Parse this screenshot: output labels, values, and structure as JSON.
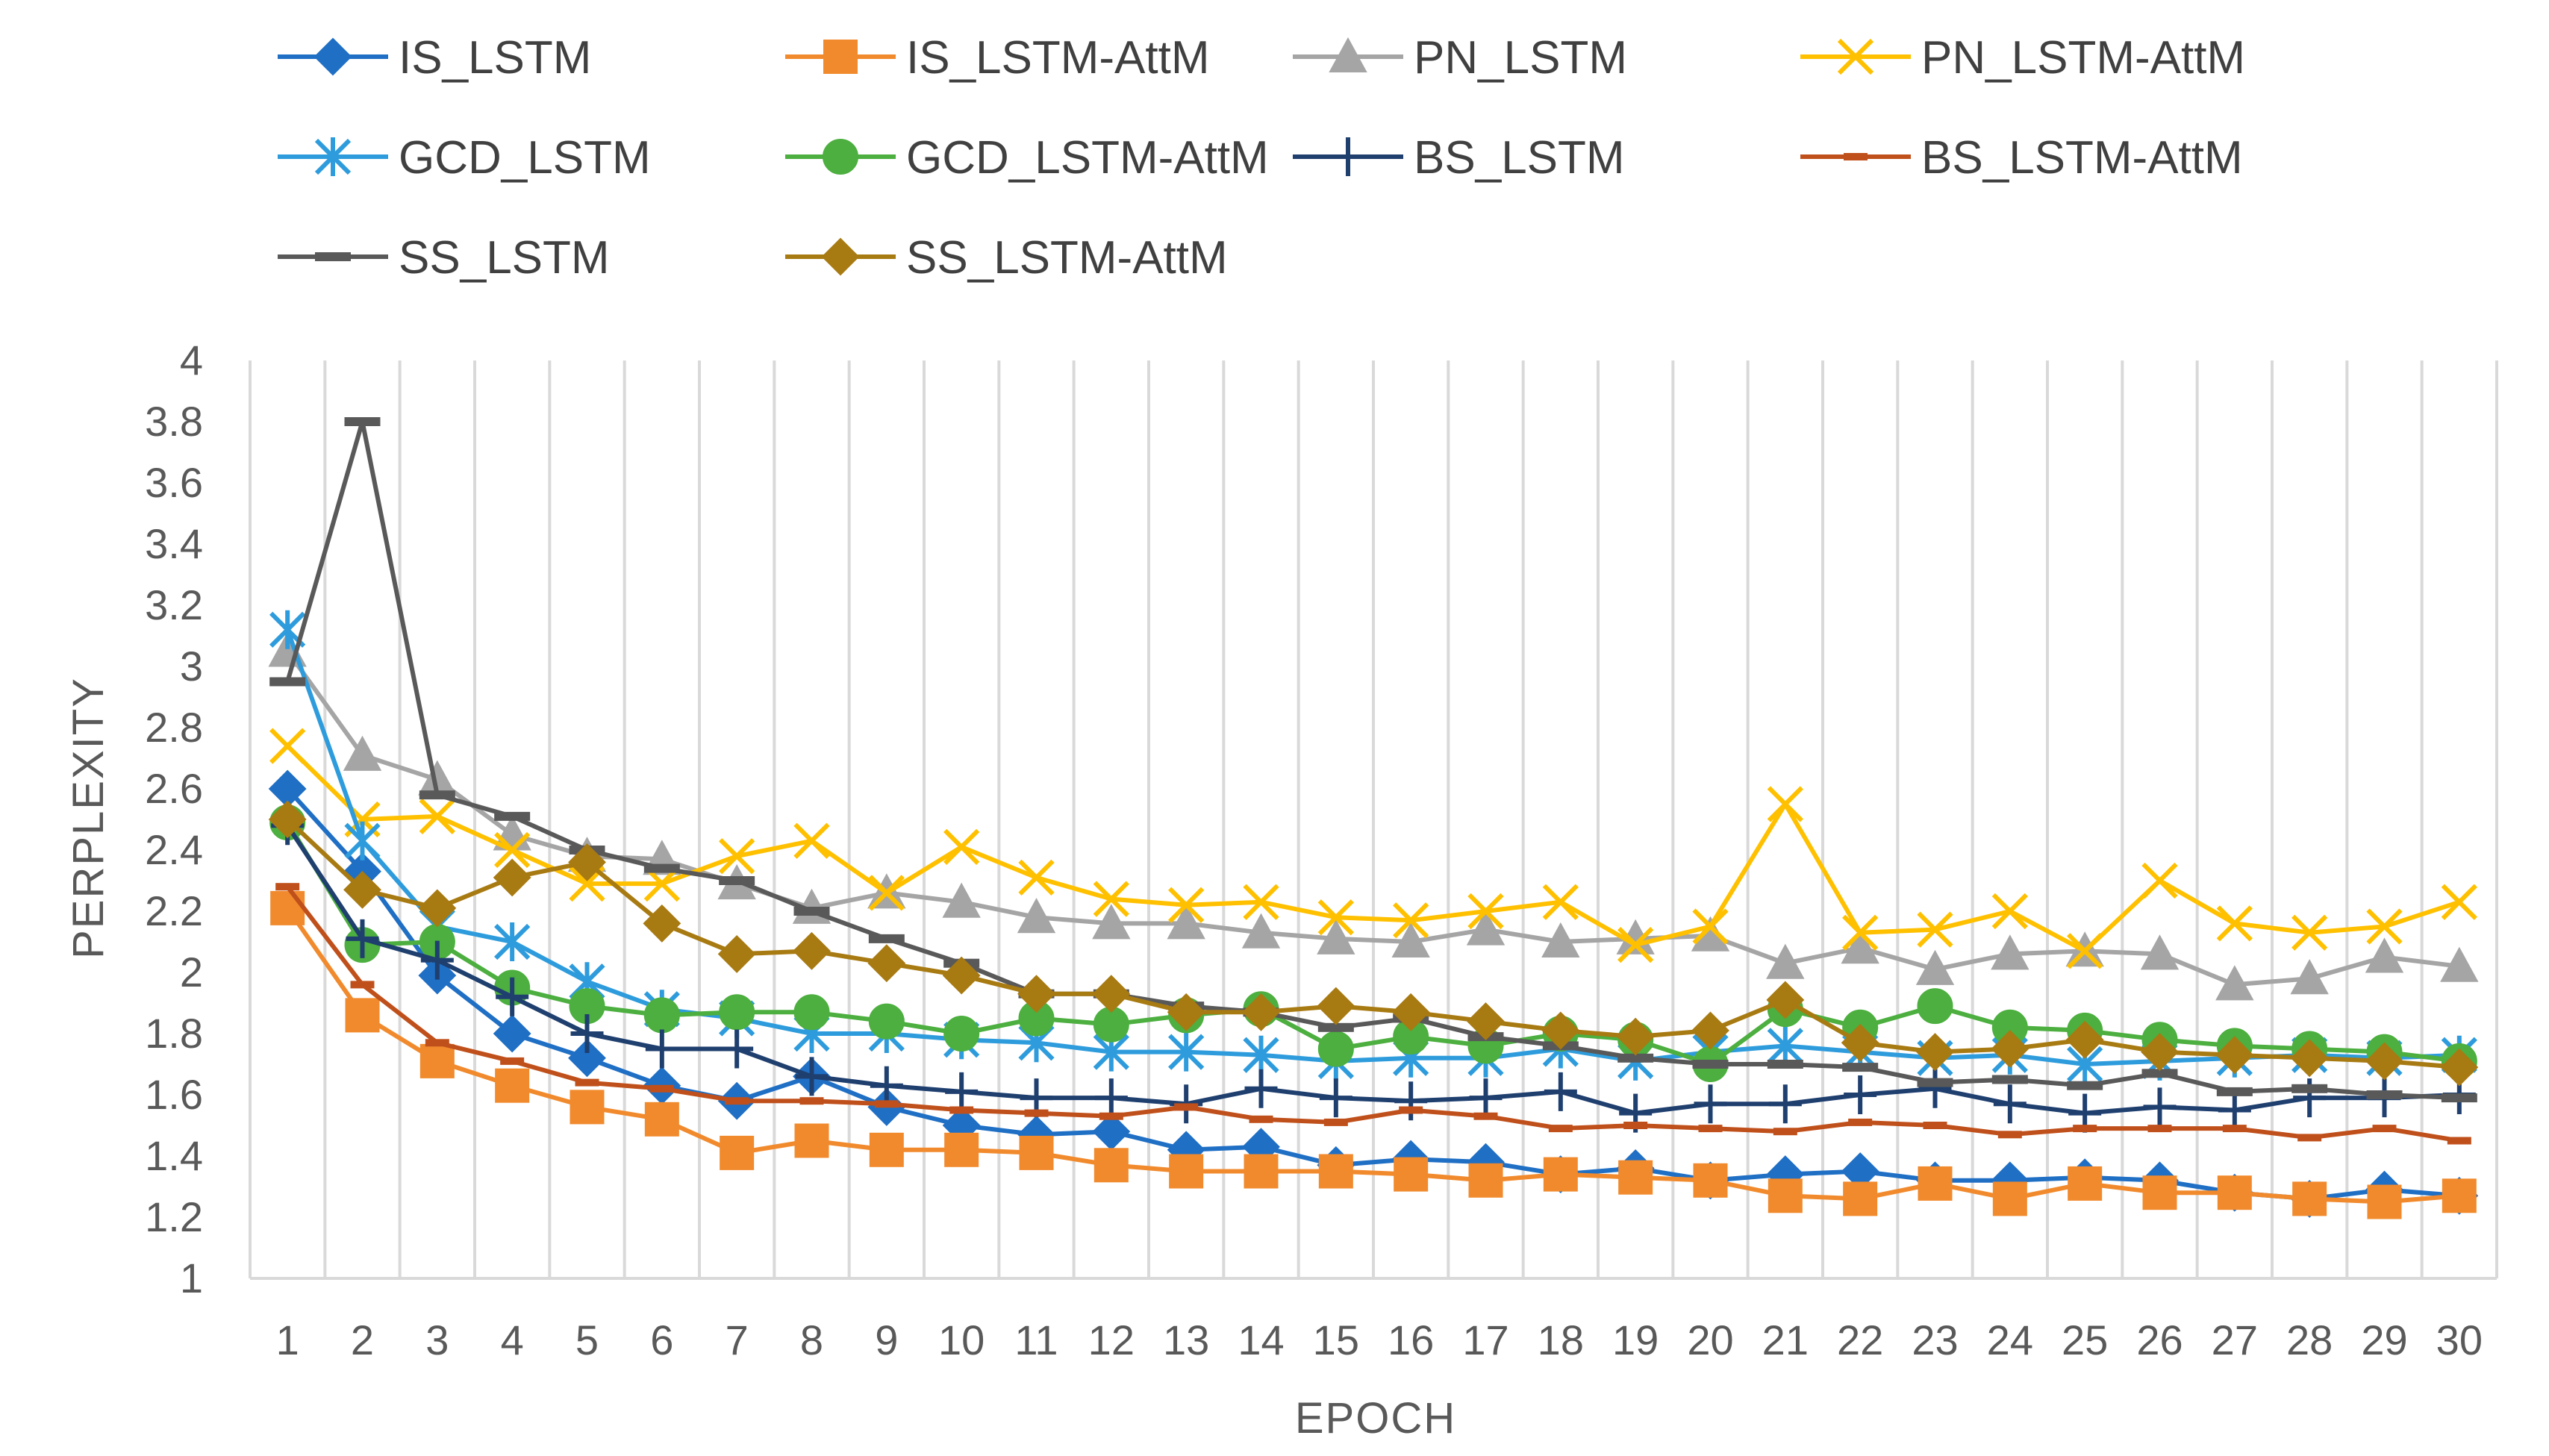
{
  "chart_data": {
    "type": "line",
    "xlabel": "EPOCH",
    "ylabel": "PERPLEXITY",
    "ylim": [
      1,
      4
    ],
    "yticks": [
      "1",
      "1.2",
      "1.4",
      "1.6",
      "1.8",
      "2",
      "2.2",
      "2.4",
      "2.6",
      "2.8",
      "3",
      "3.2",
      "3.4",
      "3.6",
      "3.8",
      "4"
    ],
    "categories": [
      "1",
      "2",
      "3",
      "4",
      "5",
      "6",
      "7",
      "8",
      "9",
      "10",
      "11",
      "12",
      "13",
      "14",
      "15",
      "16",
      "17",
      "18",
      "19",
      "20",
      "21",
      "22",
      "23",
      "24",
      "25",
      "26",
      "27",
      "28",
      "29",
      "30"
    ],
    "grid": "vertical",
    "legend_position": "top",
    "series": [
      {
        "name": "IS_LSTM",
        "color": "#1F6FC5",
        "marker": "diamond",
        "values": [
          2.6,
          2.33,
          1.99,
          1.8,
          1.72,
          1.63,
          1.58,
          1.66,
          1.56,
          1.5,
          1.47,
          1.48,
          1.42,
          1.43,
          1.37,
          1.39,
          1.38,
          1.34,
          1.36,
          1.32,
          1.34,
          1.35,
          1.32,
          1.32,
          1.33,
          1.32,
          1.28,
          1.26,
          1.29,
          1.27
        ]
      },
      {
        "name": "IS_LSTM-AttM",
        "color": "#F18A2D",
        "marker": "square",
        "values": [
          2.21,
          1.86,
          1.71,
          1.63,
          1.56,
          1.52,
          1.41,
          1.45,
          1.42,
          1.42,
          1.41,
          1.37,
          1.35,
          1.35,
          1.35,
          1.34,
          1.32,
          1.34,
          1.33,
          1.32,
          1.27,
          1.26,
          1.31,
          1.26,
          1.31,
          1.28,
          1.28,
          1.26,
          1.25,
          1.27
        ]
      },
      {
        "name": "PN_LSTM",
        "color": "#A5A5A5",
        "marker": "triangle",
        "values": [
          3.05,
          2.71,
          2.63,
          2.45,
          2.38,
          2.37,
          2.29,
          2.21,
          2.26,
          2.23,
          2.18,
          2.16,
          2.16,
          2.13,
          2.11,
          2.1,
          2.14,
          2.1,
          2.11,
          2.12,
          2.03,
          2.08,
          2.01,
          2.06,
          2.07,
          2.06,
          1.96,
          1.98,
          2.05,
          2.02
        ]
      },
      {
        "name": "PN_LSTM-AttM",
        "color": "#FFC000",
        "marker": "x",
        "values": [
          2.74,
          2.5,
          2.51,
          2.4,
          2.29,
          2.29,
          2.38,
          2.43,
          2.26,
          2.41,
          2.31,
          2.24,
          2.22,
          2.23,
          2.18,
          2.17,
          2.2,
          2.23,
          2.09,
          2.15,
          2.55,
          2.13,
          2.14,
          2.2,
          2.07,
          2.3,
          2.16,
          2.13,
          2.15,
          2.23
        ]
      },
      {
        "name": "GCD_LSTM",
        "color": "#2E9CDC",
        "marker": "asterisk",
        "values": [
          3.12,
          2.43,
          2.15,
          2.1,
          1.97,
          1.88,
          1.85,
          1.8,
          1.8,
          1.78,
          1.77,
          1.74,
          1.74,
          1.73,
          1.71,
          1.72,
          1.72,
          1.75,
          1.71,
          1.74,
          1.76,
          1.74,
          1.72,
          1.73,
          1.7,
          1.71,
          1.72,
          1.73,
          1.72,
          1.73
        ]
      },
      {
        "name": "GCD_LSTM-AttM",
        "color": "#4CAF3F",
        "marker": "circle",
        "values": [
          2.49,
          2.09,
          2.1,
          1.95,
          1.89,
          1.86,
          1.87,
          1.87,
          1.84,
          1.8,
          1.85,
          1.83,
          1.86,
          1.88,
          1.75,
          1.79,
          1.76,
          1.8,
          1.78,
          1.7,
          1.88,
          1.82,
          1.89,
          1.82,
          1.81,
          1.78,
          1.76,
          1.75,
          1.74,
          1.71
        ]
      },
      {
        "name": "BS_LSTM",
        "color": "#1F3F6F",
        "marker": "plus",
        "values": [
          2.48,
          2.11,
          2.04,
          1.92,
          1.8,
          1.75,
          1.75,
          1.66,
          1.63,
          1.61,
          1.59,
          1.59,
          1.57,
          1.62,
          1.59,
          1.58,
          1.59,
          1.61,
          1.54,
          1.57,
          1.57,
          1.6,
          1.62,
          1.57,
          1.54,
          1.56,
          1.55,
          1.59,
          1.59,
          1.6
        ]
      },
      {
        "name": "BS_LSTM-AttM",
        "color": "#C0501B",
        "marker": "dash",
        "values": [
          2.28,
          1.96,
          1.77,
          1.71,
          1.64,
          1.62,
          1.58,
          1.58,
          1.57,
          1.55,
          1.54,
          1.53,
          1.56,
          1.52,
          1.51,
          1.55,
          1.53,
          1.49,
          1.5,
          1.49,
          1.48,
          1.51,
          1.5,
          1.47,
          1.49,
          1.49,
          1.49,
          1.46,
          1.49,
          1.45
        ]
      },
      {
        "name": "SS_LSTM",
        "color": "#595959",
        "marker": "bar",
        "values": [
          2.95,
          3.8,
          2.58,
          2.51,
          2.4,
          2.34,
          2.3,
          2.2,
          2.11,
          2.03,
          1.93,
          1.93,
          1.89,
          1.87,
          1.82,
          1.85,
          1.79,
          1.76,
          1.72,
          1.7,
          1.7,
          1.69,
          1.64,
          1.65,
          1.63,
          1.67,
          1.61,
          1.62,
          1.6,
          1.59
        ]
      },
      {
        "name": "SS_LSTM-AttM",
        "color": "#A87A12",
        "marker": "diamond",
        "values": [
          2.5,
          2.27,
          2.21,
          2.31,
          2.36,
          2.16,
          2.06,
          2.07,
          2.03,
          1.99,
          1.93,
          1.93,
          1.87,
          1.87,
          1.89,
          1.87,
          1.84,
          1.81,
          1.79,
          1.81,
          1.91,
          1.77,
          1.74,
          1.75,
          1.78,
          1.74,
          1.73,
          1.72,
          1.71,
          1.69
        ]
      }
    ]
  }
}
